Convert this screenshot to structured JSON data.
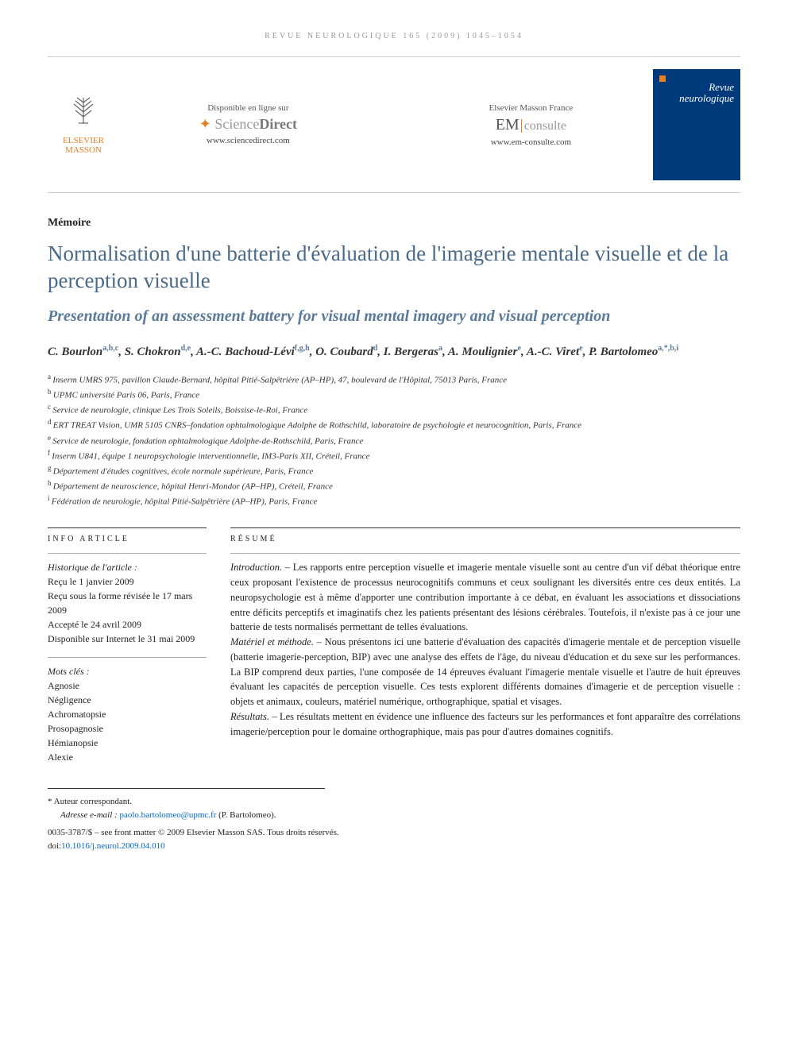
{
  "running_header": "REVUE NEUROLOGIQUE 165 (2009) 1045–1054",
  "publisher": {
    "name_line1": "ELSEVIER",
    "name_line2": "MASSON"
  },
  "service1": {
    "toplabel": "Disponible en ligne sur",
    "brand_prefix": "Science",
    "brand_suffix": "Direct",
    "url": "www.sciencedirect.com"
  },
  "service2": {
    "toplabel": "Elsevier Masson France",
    "brand_em": "EM",
    "brand_consulte": "consulte",
    "url": "www.em-consulte.com"
  },
  "cover": {
    "journal_line1": "Revue",
    "journal_line2": "neurologique"
  },
  "article_type": "Mémoire",
  "title_fr": "Normalisation d'une batterie d'évaluation de l'imagerie mentale visuelle et de la perception visuelle",
  "title_en": "Presentation of an assessment battery for visual mental imagery and visual perception",
  "authors_html": "C. Bourlon|a,b,c|, S. Chokron|d,e|, A.-C. Bachoud-Lévi|f,g,h|, O. Coubard|d|, I. Bergeras|a|, A. Moulignier|e|, A.-C. Viret|e|, P. Bartolomeo|a,*,b,i|",
  "affiliations": [
    {
      "sup": "a",
      "text": "Inserm UMRS 975, pavillon Claude-Bernard, hôpital Pitié-Salpêtrière (AP–HP), 47, boulevard de l'Hôpital, 75013 Paris, France"
    },
    {
      "sup": "b",
      "text": "UPMC université Paris 06, Paris, France"
    },
    {
      "sup": "c",
      "text": "Service de neurologie, clinique Les Trois Soleils, Boissise-le-Roi, France"
    },
    {
      "sup": "d",
      "text": "ERT TREAT Vision, UMR 5105 CNRS–fondation ophtalmologique Adolphe de Rothschild, laboratoire de psychologie et neurocognition, Paris, France"
    },
    {
      "sup": "e",
      "text": "Service de neurologie, fondation ophtalmologique Adolphe-de-Rothschild, Paris, France"
    },
    {
      "sup": "f",
      "text": "Inserm U841, équipe 1 neuropsychologie interventionnelle, IM3-Paris XII, Créteil, France"
    },
    {
      "sup": "g",
      "text": "Département d'études cognitives, école normale supérieure, Paris, France"
    },
    {
      "sup": "h",
      "text": "Département de neuroscience, hôpital Henri-Mondor (AP–HP), Créteil, France"
    },
    {
      "sup": "i",
      "text": "Fédération de neurologie, hôpital Pitié-Salpêtrière (AP–HP), Paris, France"
    }
  ],
  "info_heading": "INFO ARTICLE",
  "history": {
    "heading": "Historique de l'article :",
    "lines": [
      "Reçu le 1 janvier 2009",
      "Reçu sous la forme révisée le 17 mars 2009",
      "Accepté le  24 avril 2009",
      "Disponible sur Internet le 31 mai 2009"
    ]
  },
  "keywords": {
    "heading": "Mots clés :",
    "items": [
      "Agnosie",
      "Négligence",
      "Achromatopsie",
      "Prosopagnosie",
      "Hémianopsie",
      "Alexie"
    ]
  },
  "resume_heading": "RÉSUMÉ",
  "resume_sections": [
    {
      "label": "Introduction. –",
      "text": " Les rapports entre perception visuelle et imagerie mentale visuelle sont au centre d'un vif débat théorique entre ceux proposant l'existence de processus neurocognitifs communs et ceux soulignant les diversités entre ces deux entités. La neuropsychologie est à même d'apporter une contribution importante à ce débat, en évaluant les associations et dissociations entre déficits perceptifs et imaginatifs chez les patients présentant des lésions cérébrales. Toutefois, il n'existe pas à ce jour une batterie de tests normalisés permettant de telles évaluations."
    },
    {
      "label": "Matériel et méthode. –",
      "text": " Nous présentons ici une batterie d'évaluation des capacités d'imagerie mentale et de perception visuelle (batterie imagerie-perception, BIP) avec une analyse des effets de l'âge, du niveau d'éducation et du sexe sur les performances. La BIP comprend deux parties, l'une composée de 14 épreuves évaluant l'imagerie mentale visuelle et l'autre de huit épreuves évaluant les capacités de perception visuelle. Ces tests explorent différents domaines d'imagerie et de perception visuelle : objets et animaux, couleurs, matériel numérique, orthographique, spatial et visages."
    },
    {
      "label": "Résultats. –",
      "text": " Les résultats mettent en évidence une influence des facteurs sur les performances et font apparaître des corrélations imagerie/perception pour le domaine orthographique, mais pas pour d'autres domaines cognitifs."
    }
  ],
  "footnote": {
    "symbol": "*",
    "label": "Auteur correspondant.",
    "email_label": "Adresse e-mail :",
    "email": "paolo.bartolomeo@upmc.fr",
    "email_suffix": " (P. Bartolomeo)."
  },
  "bottom": {
    "issn_line": "0035-3787/$ – see front matter © 2009 Elsevier Masson SAS. Tous droits réservés.",
    "doi_label": "doi:",
    "doi": "10.1016/j.neurol.2009.04.010"
  },
  "colors": {
    "title": "#4a6a8a",
    "link": "#0066cc",
    "accent": "#e67e22"
  }
}
